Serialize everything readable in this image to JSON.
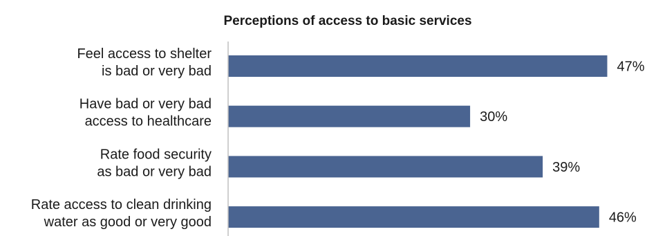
{
  "chart_data": {
    "type": "bar",
    "orientation": "horizontal",
    "title": "Perceptions of access to basic services",
    "categories": [
      [
        "Feel access to shelter",
        "is bad or very bad"
      ],
      [
        "Have bad or very bad",
        "access to healthcare"
      ],
      [
        "Rate food security",
        "as bad or very bad"
      ],
      [
        "Rate access to clean drinking",
        "water as good or very good"
      ]
    ],
    "values": [
      47,
      30,
      39,
      46
    ],
    "value_labels": [
      "47%",
      "30%",
      "39%",
      "46%"
    ],
    "xlabel": "",
    "ylabel": "",
    "xlim": [
      0,
      50
    ],
    "grid": false,
    "legend": "none",
    "bar_color": "#4a6491",
    "axis_color": "#bfbfbf"
  }
}
